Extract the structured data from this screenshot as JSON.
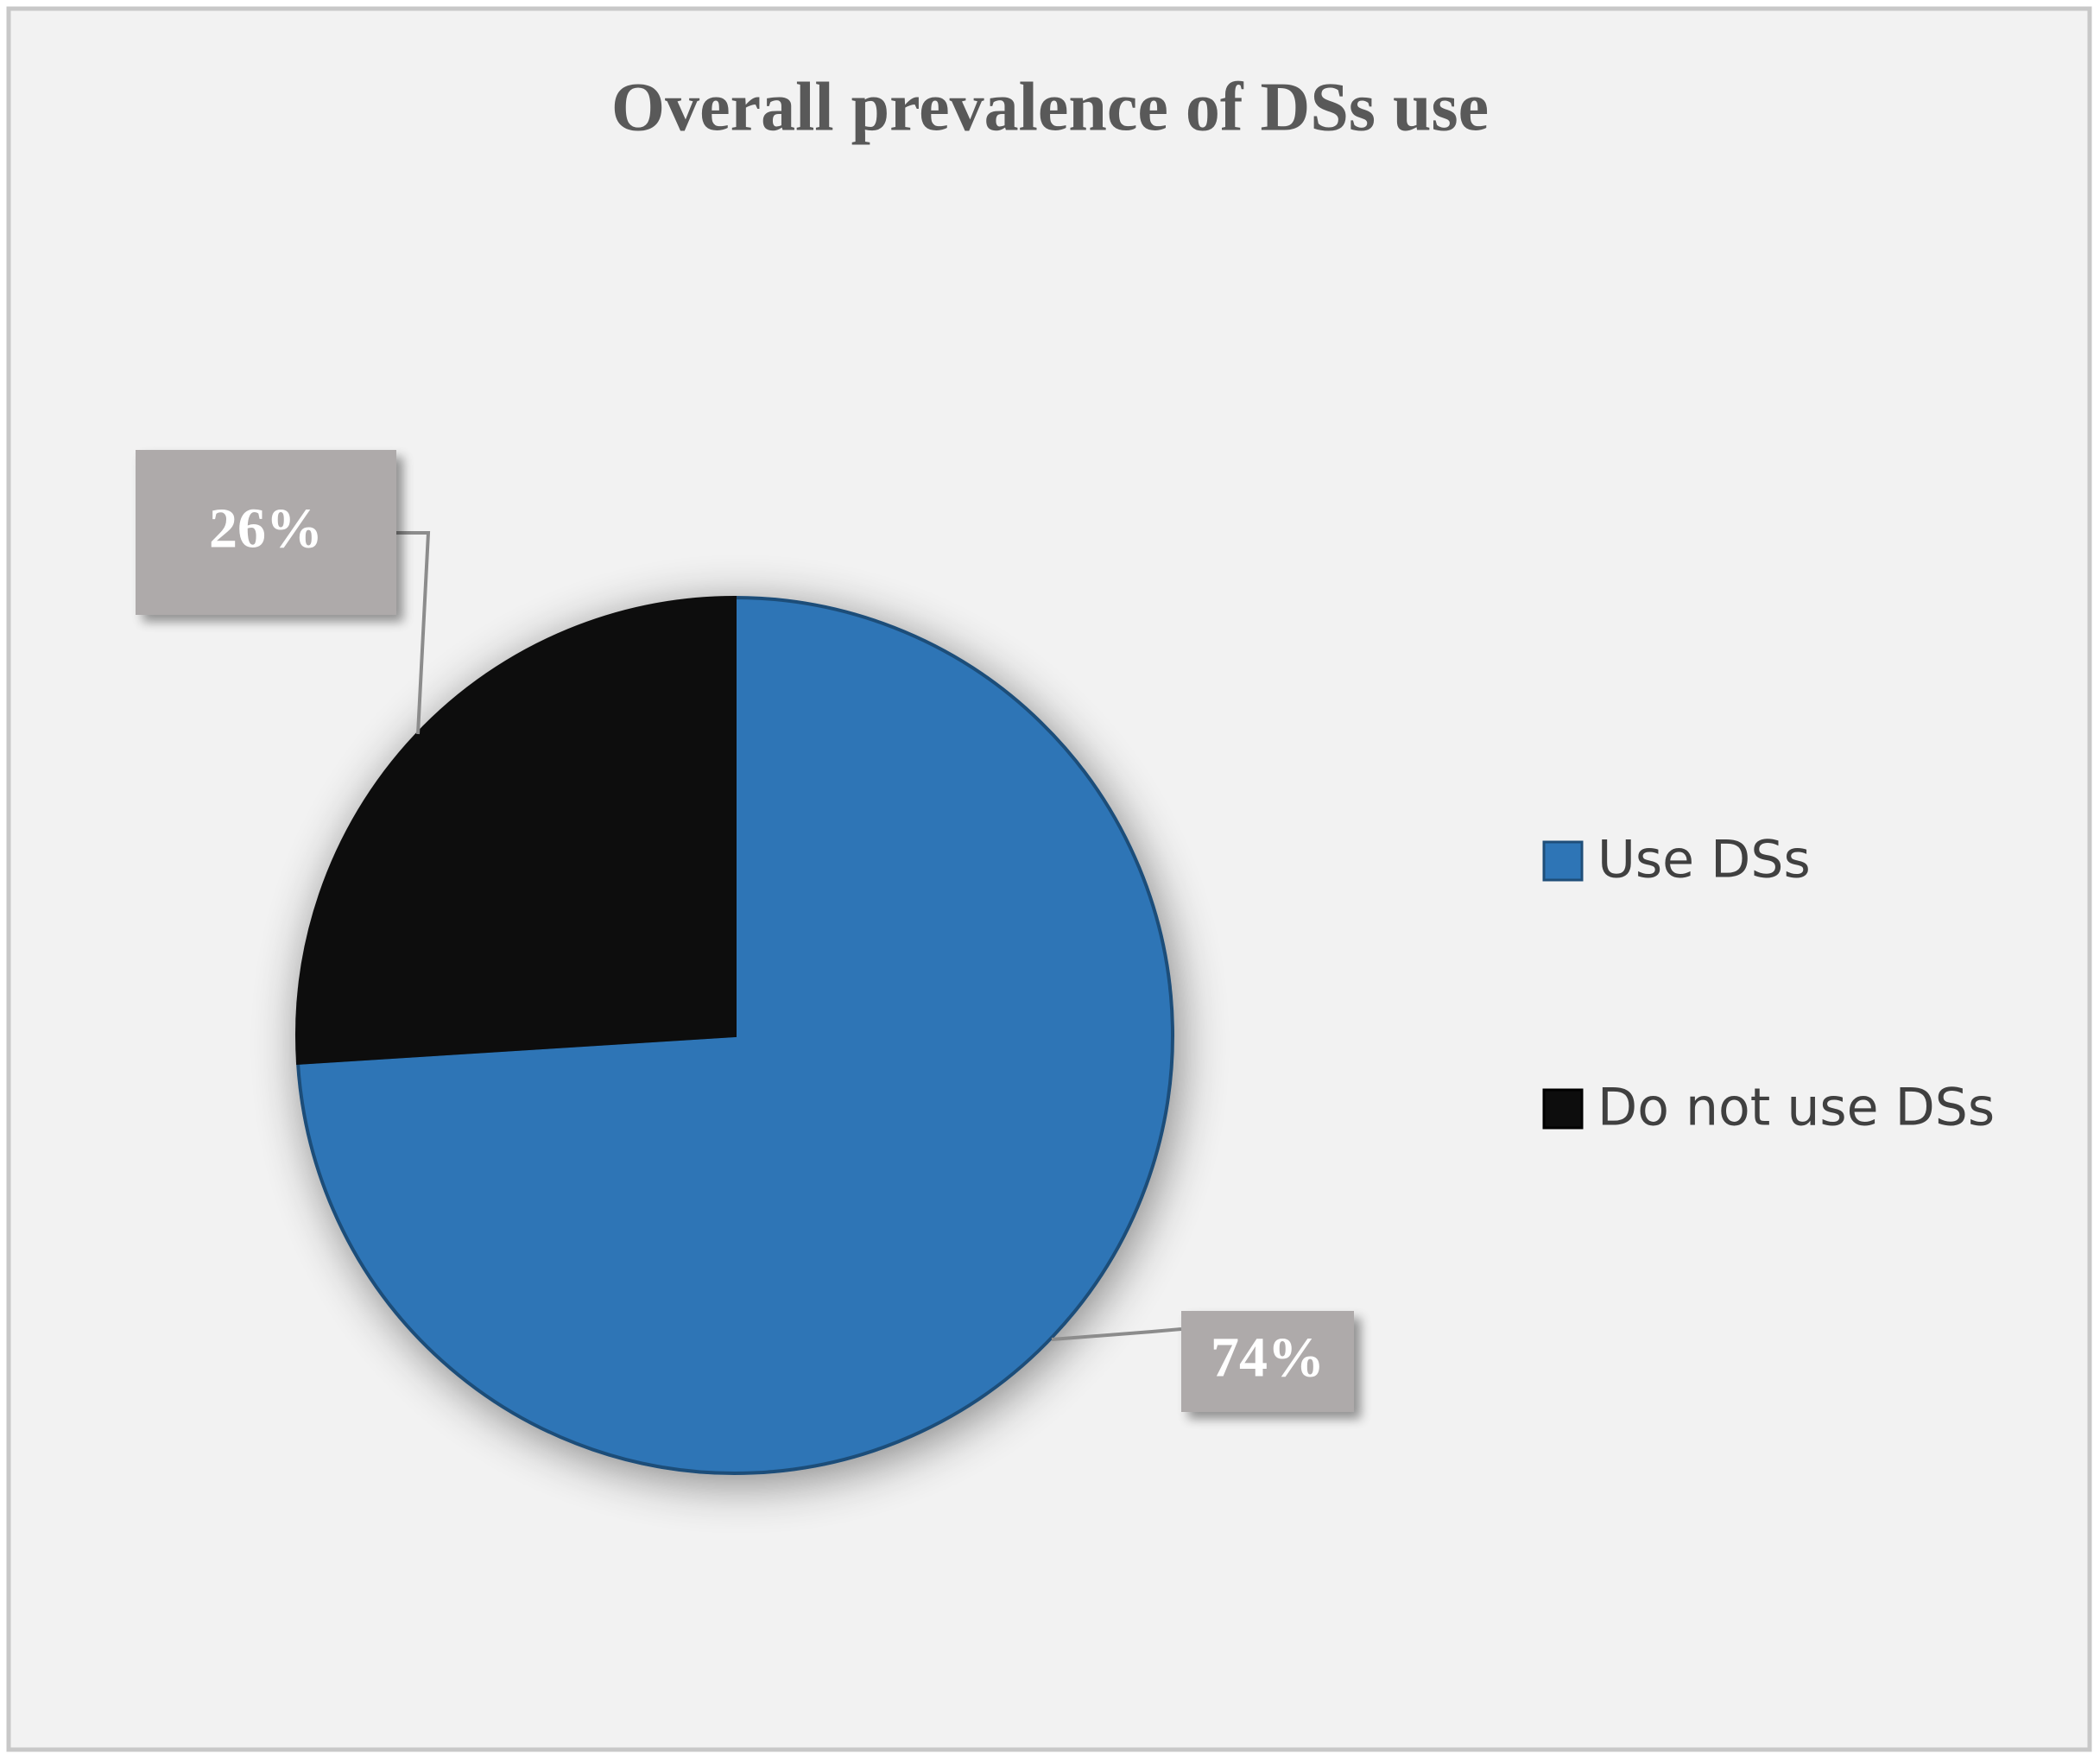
{
  "chart_data": {
    "type": "pie",
    "title": "Overall prevalence of DSs use",
    "categories": [
      "Use DSs",
      "Do not use DSs"
    ],
    "values": [
      74,
      26
    ],
    "value_labels": [
      "74%",
      "26%"
    ],
    "colors": [
      "#2e75b6",
      "#0d0d0d"
    ],
    "legend": "right"
  }
}
